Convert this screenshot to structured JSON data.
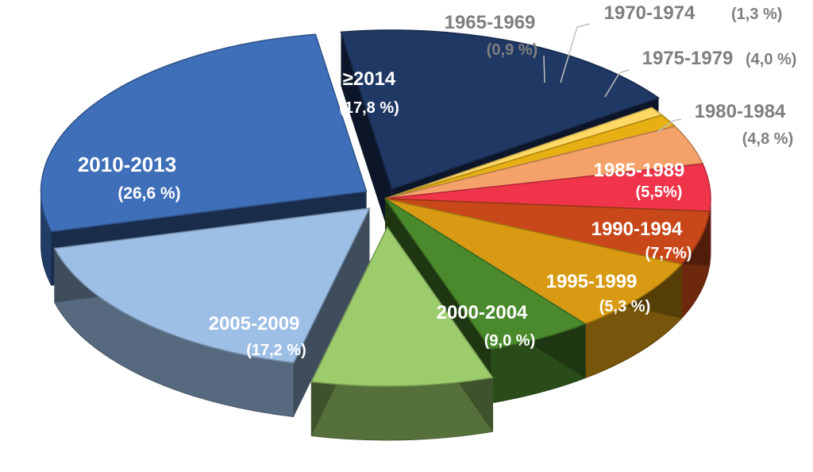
{
  "chart_data": {
    "type": "pie",
    "title": "",
    "categories": [
      "≥2014",
      "1965-1969",
      "1970-1974",
      "1975-1979",
      "1980-1984",
      "1985-1989",
      "1990-1994",
      "1995-1999",
      "2000-2004",
      "2005-2009",
      "2010-2013"
    ],
    "values": [
      17.8,
      0.9,
      1.3,
      4.0,
      4.8,
      5.5,
      7.7,
      5.3,
      9.0,
      17.2,
      26.6
    ],
    "value_labels": [
      "(17,8 %)",
      "(0,9 %)",
      "(1,3 %)",
      "(4,0 %)",
      "(4,8 %)",
      "(5,5%)",
      "(7,7%)",
      "(5,3 %)",
      "(9,0 %)",
      "(17,2 %)",
      "(26,6 %)"
    ],
    "colors": [
      "#203864",
      "#ffd966",
      "#e6b012",
      "#f4a26a",
      "#f0344a",
      "#c8481a",
      "#d89a12",
      "#4a8a2c",
      "#9ccc6c",
      "#9dbfe5",
      "#3e6fb8"
    ],
    "label_colors": [
      "#ffffff",
      "#7f7f7f",
      "#7f7f7f",
      "#7f7f7f",
      "#7f7f7f",
      "#ffffff",
      "#ffffff",
      "#ffffff",
      "#ffffff",
      "#ffffff",
      "#ffffff"
    ],
    "style": "3d-exploded"
  }
}
